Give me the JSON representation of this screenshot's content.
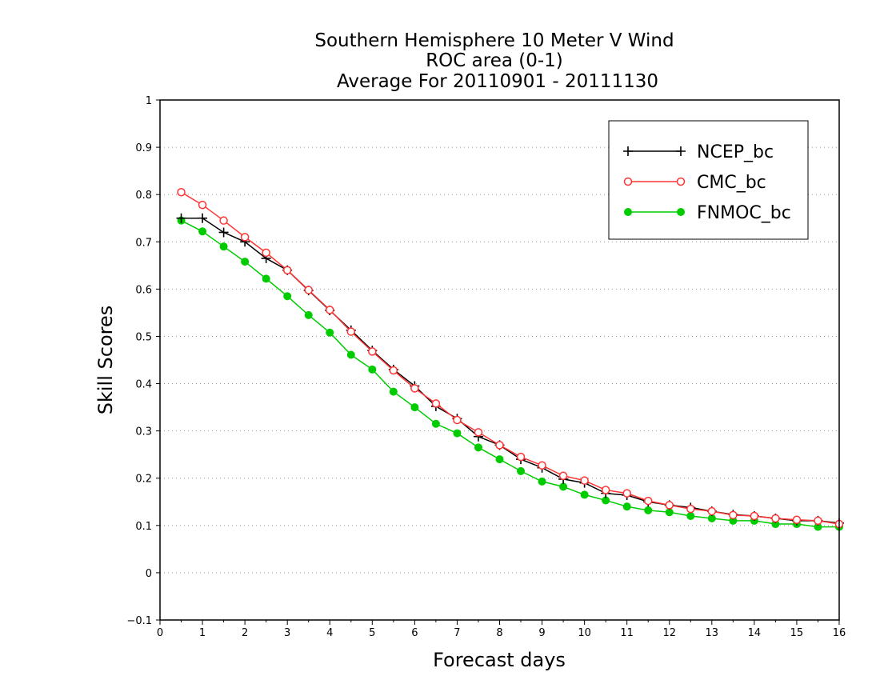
{
  "chart_data": {
    "type": "line",
    "title_lines": [
      "Southern Hemisphere 10 Meter V Wind",
      "ROC area (0-1)",
      "Average For 20110901 - 20111130"
    ],
    "xlabel": "Forecast days",
    "ylabel": "Skill Scores",
    "xlim": [
      0,
      16
    ],
    "ylim": [
      -0.1,
      1
    ],
    "x_ticks": [
      "0",
      "1",
      "2",
      "3",
      "4",
      "5",
      "6",
      "7",
      "8",
      "9",
      "10",
      "11",
      "12",
      "13",
      "14",
      "15",
      "16"
    ],
    "y_ticks": [
      "−0.1",
      "0",
      "0.1",
      "0.2",
      "0.3",
      "0.4",
      "0.5",
      "0.6",
      "0.7",
      "0.8",
      "0.9",
      "1"
    ],
    "grid": "horizontal dotted",
    "legend_position": "top-right",
    "x": [
      0.5,
      1,
      1.5,
      2,
      2.5,
      3,
      3.5,
      4,
      4.5,
      5,
      5.5,
      6,
      6.5,
      7,
      7.5,
      8,
      8.5,
      9,
      9.5,
      10,
      10.5,
      11,
      11.5,
      12,
      12.5,
      13,
      13.5,
      14,
      14.5,
      15,
      15.5,
      16
    ],
    "series": [
      {
        "name": "NCEP_bc",
        "color": "#000000",
        "marker": "plus",
        "values": [
          0.75,
          0.75,
          0.72,
          0.7,
          0.665,
          0.64,
          0.597,
          0.555,
          0.513,
          0.47,
          0.43,
          0.395,
          0.352,
          0.326,
          0.288,
          0.27,
          0.24,
          0.222,
          0.198,
          0.19,
          0.168,
          0.164,
          0.15,
          0.143,
          0.138,
          0.13,
          0.123,
          0.12,
          0.115,
          0.11,
          0.11,
          0.105
        ]
      },
      {
        "name": "CMC_bc",
        "color": "#ff3333",
        "marker": "open-circle",
        "values": [
          0.805,
          0.778,
          0.745,
          0.71,
          0.677,
          0.64,
          0.598,
          0.556,
          0.51,
          0.468,
          0.428,
          0.39,
          0.358,
          0.323,
          0.297,
          0.27,
          0.245,
          0.227,
          0.205,
          0.195,
          0.175,
          0.168,
          0.152,
          0.143,
          0.135,
          0.13,
          0.122,
          0.12,
          0.115,
          0.112,
          0.11,
          0.103
        ]
      },
      {
        "name": "FNMOC_bc",
        "color": "#00cc00",
        "marker": "filled-circle",
        "values": [
          0.745,
          0.722,
          0.69,
          0.658,
          0.622,
          0.585,
          0.545,
          0.508,
          0.461,
          0.43,
          0.383,
          0.35,
          0.315,
          0.295,
          0.265,
          0.24,
          0.215,
          0.193,
          0.182,
          0.165,
          0.153,
          0.14,
          0.132,
          0.128,
          0.12,
          0.115,
          0.11,
          0.11,
          0.103,
          0.103,
          0.097,
          0.097
        ]
      }
    ]
  }
}
